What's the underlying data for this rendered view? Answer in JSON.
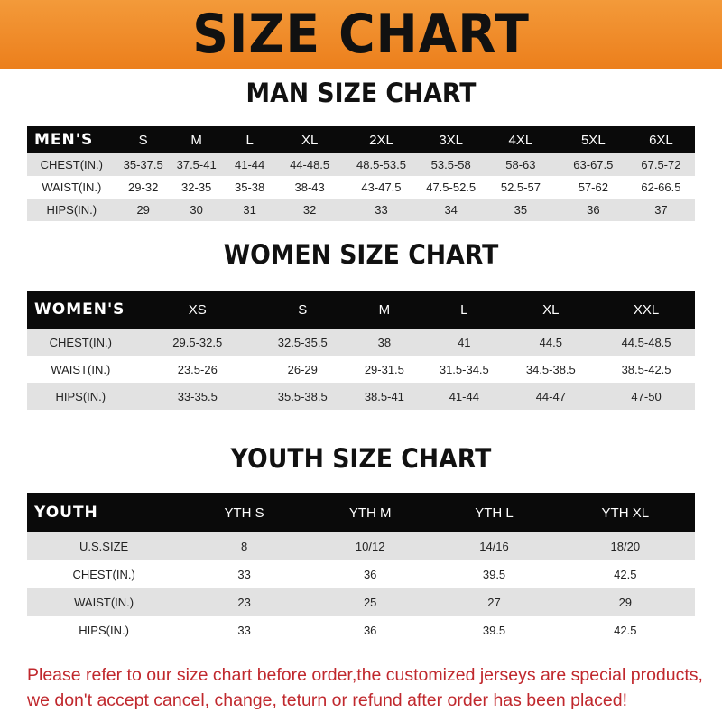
{
  "title": "SIZE CHART",
  "men": {
    "title": "MAN SIZE CHART",
    "header": [
      "MEN'S",
      "S",
      "M",
      "L",
      "XL",
      "2XL",
      "3XL",
      "4XL",
      "5XL",
      "6XL"
    ],
    "rows": [
      [
        "CHEST(IN.)",
        "35-37.5",
        "37.5-41",
        "41-44",
        "44-48.5",
        "48.5-53.5",
        "53.5-58",
        "58-63",
        "63-67.5",
        "67.5-72"
      ],
      [
        "WAIST(IN.)",
        "29-32",
        "32-35",
        "35-38",
        "38-43",
        "43-47.5",
        "47.5-52.5",
        "52.5-57",
        "57-62",
        "62-66.5"
      ],
      [
        "HIPS(IN.)",
        "29",
        "30",
        "31",
        "32",
        "33",
        "34",
        "35",
        "36",
        "37"
      ]
    ]
  },
  "women": {
    "title": "WOMEN SIZE CHART",
    "header": [
      "WOMEN'S",
      "XS",
      "S",
      "M",
      "L",
      "XL",
      "XXL"
    ],
    "rows": [
      [
        "CHEST(IN.)",
        "29.5-32.5",
        "32.5-35.5",
        "38",
        "41",
        "44.5",
        "44.5-48.5"
      ],
      [
        "WAIST(IN.)",
        "23.5-26",
        "26-29",
        "29-31.5",
        "31.5-34.5",
        "34.5-38.5",
        "38.5-42.5"
      ],
      [
        "HIPS(IN.)",
        "33-35.5",
        "35.5-38.5",
        "38.5-41",
        "41-44",
        "44-47",
        "47-50"
      ]
    ]
  },
  "youth": {
    "title": "YOUTH SIZE CHART",
    "header": [
      "YOUTH",
      "YTH S",
      "YTH M",
      "YTH L",
      "YTH XL"
    ],
    "rows": [
      [
        "U.S.SIZE",
        "8",
        "10/12",
        "14/16",
        "18/20"
      ],
      [
        "CHEST(IN.)",
        "33",
        "36",
        "39.5",
        "42.5"
      ],
      [
        "WAIST(IN.)",
        "23",
        "25",
        "27",
        "29"
      ],
      [
        "HIPS(IN.)",
        "33",
        "36",
        "39.5",
        "42.5"
      ]
    ]
  },
  "note": [
    "Please refer to our size chart before order,the customized jerseys are special products,",
    "we don't accept cancel, change, teturn or refund after order has been placed!"
  ],
  "colors": {
    "banner": "#ee8526",
    "header_row": "#0a0a0a",
    "stripe": "#e2e2e2",
    "note": "#c0282d"
  }
}
